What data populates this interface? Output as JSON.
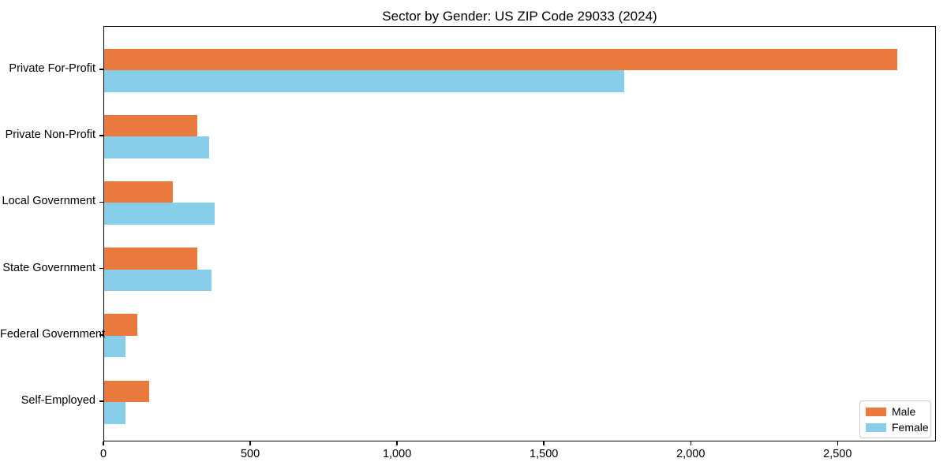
{
  "chart_data": {
    "type": "bar",
    "orientation": "horizontal",
    "title": "Sector by Gender: US ZIP Code 29033 (2024)",
    "categories": [
      "Private For-Profit",
      "Private Non-Profit",
      "Local Government",
      "State Government",
      "Federal Government",
      "Self-Employed"
    ],
    "series": [
      {
        "name": "Male",
        "color": "#E9793C",
        "values": [
          2700,
          317,
          234,
          317,
          112,
          153
        ]
      },
      {
        "name": "Female",
        "color": "#87CEEB",
        "values": [
          1770,
          358,
          377,
          366,
          73,
          72
        ]
      }
    ],
    "xlim": [
      0,
      2835
    ],
    "x_ticks": [
      0,
      500,
      1000,
      1500,
      2000,
      2500
    ],
    "x_tick_labels": [
      "0",
      "500",
      "1,000",
      "1,500",
      "2,000",
      "2,500"
    ],
    "grid": false,
    "legend_position": "lower right"
  }
}
